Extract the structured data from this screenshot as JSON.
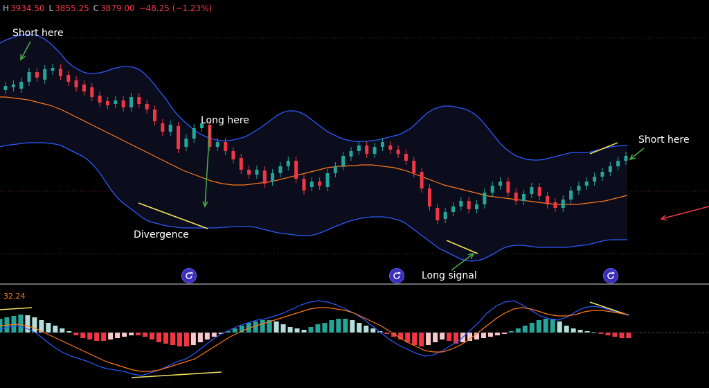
{
  "ohlc": {
    "h_label": "H",
    "h": "3934.50",
    "l_label": "L",
    "l": "3855.25",
    "c_label": "C",
    "c": "3879.00",
    "change": "−48.25 (−1.23%)"
  },
  "oscillator": {
    "value": "32.24"
  },
  "annotations": {
    "short_left": "Short here",
    "long_here": "Long here",
    "divergence": "Divergence",
    "long_signal": "Long signal",
    "short_right": "Short here"
  },
  "colors": {
    "up": "#26a69a",
    "down": "#f23645",
    "band": "#2d5bff",
    "basis": "#ff7a1a",
    "macd": "#2d5bff",
    "signal": "#ff7a1a",
    "divergence": "#f2e35b",
    "arrow_green": "#4caf50",
    "arrow_red": "#f23645",
    "icon_bg": "#3b2fb8"
  },
  "chart_data": {
    "type": "candlestick",
    "upper_band": [
      62,
      58,
      55,
      52,
      50,
      50,
      50,
      52,
      56,
      62,
      70,
      78,
      88,
      95,
      100,
      104,
      106,
      106,
      105,
      103,
      100,
      98,
      96,
      96,
      97,
      100,
      106,
      114,
      124,
      134,
      144,
      156,
      166,
      174,
      181,
      188,
      193,
      197,
      200,
      202,
      203,
      203,
      202,
      200,
      198,
      194,
      189,
      184,
      178,
      172,
      166,
      162,
      160,
      160,
      162,
      166,
      172,
      178,
      184,
      190,
      194,
      198,
      201,
      203,
      204,
      204,
      204,
      203,
      202,
      200,
      198,
      196,
      194,
      190,
      185,
      178,
      170,
      163,
      158,
      155,
      153,
      153,
      154,
      156,
      158,
      162,
      168,
      176,
      186,
      196,
      206,
      214,
      220,
      225,
      228,
      230,
      231,
      231,
      230,
      228,
      226,
      224,
      222,
      220,
      220,
      220,
      220,
      218,
      216,
      214,
      212,
      211,
      210,
      210
    ],
    "lower_band": [
      212,
      210,
      209,
      208,
      207,
      206,
      206,
      206,
      206,
      207,
      208,
      210,
      214,
      218,
      222,
      226,
      232,
      240,
      250,
      262,
      274,
      284,
      292,
      298,
      304,
      310,
      316,
      320,
      322,
      324,
      326,
      327,
      328,
      329,
      329,
      329,
      329,
      329,
      329,
      329,
      328,
      328,
      327,
      327,
      327,
      327,
      328,
      330,
      332,
      334,
      336,
      337,
      338,
      339,
      340,
      340,
      340,
      338,
      335,
      332,
      328,
      325,
      322,
      319,
      317,
      315,
      314,
      313,
      313,
      313,
      314,
      316,
      318,
      322,
      328,
      334,
      340,
      346,
      352,
      358,
      362,
      366,
      370,
      374,
      376,
      377,
      376,
      374,
      370,
      366,
      361,
      357,
      355,
      354,
      354,
      355,
      356,
      357,
      357,
      357,
      357,
      357,
      357,
      356,
      355,
      354,
      353,
      351,
      349,
      347,
      346,
      346,
      346,
      346
    ],
    "basis": [
      140,
      140,
      141,
      142,
      143,
      144,
      146,
      148,
      150,
      152,
      155,
      158,
      162,
      166,
      170,
      174,
      178,
      182,
      186,
      190,
      194,
      198,
      202,
      206,
      210,
      214,
      218,
      222,
      226,
      230,
      234,
      238,
      242,
      246,
      249,
      252,
      255,
      258,
      261,
      263,
      265,
      266,
      267,
      267,
      267,
      266,
      265,
      264,
      263,
      262,
      260,
      258,
      256,
      254,
      252,
      250,
      248,
      246,
      244,
      242,
      241,
      240,
      240,
      239,
      239,
      238,
      238,
      238,
      239,
      240,
      241,
      242,
      244,
      246,
      249,
      252,
      255,
      258,
      261,
      264,
      267,
      269,
      271,
      273,
      275,
      277,
      279,
      281,
      283,
      284,
      285,
      286,
      287,
      288,
      289,
      290,
      291,
      292,
      293,
      294,
      295,
      295,
      295,
      295,
      295,
      294,
      293,
      292,
      291,
      290,
      288,
      286,
      284,
      282
    ],
    "candles": [
      {
        "o": 130,
        "c": 124
      },
      {
        "o": 126,
        "c": 122
      },
      {
        "o": 128,
        "c": 118
      },
      {
        "o": 118,
        "c": 104
      },
      {
        "o": 104,
        "c": 112
      },
      {
        "o": 115,
        "c": 100
      },
      {
        "o": 102,
        "c": 98
      },
      {
        "o": 99,
        "c": 110
      },
      {
        "o": 108,
        "c": 118
      },
      {
        "o": 116,
        "c": 126
      },
      {
        "o": 122,
        "c": 132
      },
      {
        "o": 126,
        "c": 140
      },
      {
        "o": 138,
        "c": 148
      },
      {
        "o": 146,
        "c": 152
      },
      {
        "o": 150,
        "c": 145
      },
      {
        "o": 145,
        "c": 155
      },
      {
        "o": 155,
        "c": 140
      },
      {
        "o": 140,
        "c": 150
      },
      {
        "o": 150,
        "c": 158
      },
      {
        "o": 158,
        "c": 175
      },
      {
        "o": 178,
        "c": 190
      },
      {
        "o": 190,
        "c": 180
      },
      {
        "o": 182,
        "c": 215
      },
      {
        "o": 212,
        "c": 200
      },
      {
        "o": 200,
        "c": 185
      },
      {
        "o": 185,
        "c": 178
      },
      {
        "o": 180,
        "c": 212
      },
      {
        "o": 212,
        "c": 205
      },
      {
        "o": 205,
        "c": 218
      },
      {
        "o": 218,
        "c": 230
      },
      {
        "o": 228,
        "c": 245
      },
      {
        "o": 245,
        "c": 252
      },
      {
        "o": 252,
        "c": 245
      },
      {
        "o": 246,
        "c": 265
      },
      {
        "o": 262,
        "c": 250
      },
      {
        "o": 250,
        "c": 240
      },
      {
        "o": 240,
        "c": 232
      },
      {
        "o": 232,
        "c": 258
      },
      {
        "o": 258,
        "c": 275
      },
      {
        "o": 270,
        "c": 262
      },
      {
        "o": 262,
        "c": 268
      },
      {
        "o": 270,
        "c": 250
      },
      {
        "o": 250,
        "c": 240
      },
      {
        "o": 240,
        "c": 225
      },
      {
        "o": 226,
        "c": 218
      },
      {
        "o": 218,
        "c": 210
      },
      {
        "o": 210,
        "c": 222
      },
      {
        "o": 222,
        "c": 212
      },
      {
        "o": 212,
        "c": 205
      },
      {
        "o": 210,
        "c": 216
      },
      {
        "o": 216,
        "c": 222
      },
      {
        "o": 222,
        "c": 232
      },
      {
        "o": 232,
        "c": 250
      },
      {
        "o": 248,
        "c": 272
      },
      {
        "o": 272,
        "c": 298
      },
      {
        "o": 300,
        "c": 318
      },
      {
        "o": 316,
        "c": 306
      },
      {
        "o": 306,
        "c": 298
      },
      {
        "o": 298,
        "c": 290
      },
      {
        "o": 290,
        "c": 302
      },
      {
        "o": 302,
        "c": 295
      },
      {
        "o": 295,
        "c": 278
      },
      {
        "o": 278,
        "c": 268
      },
      {
        "o": 268,
        "c": 262
      },
      {
        "o": 262,
        "c": 278
      },
      {
        "o": 278,
        "c": 290
      },
      {
        "o": 290,
        "c": 280
      },
      {
        "o": 280,
        "c": 270
      },
      {
        "o": 270,
        "c": 283
      },
      {
        "o": 283,
        "c": 295
      },
      {
        "o": 292,
        "c": 300
      },
      {
        "o": 300,
        "c": 288
      },
      {
        "o": 288,
        "c": 275
      },
      {
        "o": 275,
        "c": 268
      },
      {
        "o": 268,
        "c": 262
      },
      {
        "o": 262,
        "c": 255
      },
      {
        "o": 255,
        "c": 248
      },
      {
        "o": 248,
        "c": 240
      },
      {
        "o": 240,
        "c": 232
      },
      {
        "o": 232,
        "c": 225
      }
    ],
    "macd_hist": [
      20,
      22,
      24,
      26,
      25,
      22,
      18,
      14,
      10,
      6,
      2,
      -4,
      -8,
      -10,
      -12,
      -12,
      -10,
      -8,
      -6,
      -4,
      -4,
      -6,
      -10,
      -14,
      -16,
      -18,
      -20,
      -20,
      -18,
      -14,
      -10,
      -6,
      -2,
      2,
      6,
      10,
      14,
      16,
      18,
      18,
      16,
      12,
      8,
      6,
      4,
      8,
      12,
      14,
      18,
      20,
      20,
      18,
      14,
      10,
      6,
      2,
      -2,
      -6,
      -10,
      -14,
      -18,
      -20,
      -18,
      -14,
      -10,
      -12,
      -16,
      -14,
      -12,
      -10,
      -8,
      -6,
      -4,
      -2,
      2,
      6,
      10,
      14,
      18,
      20,
      20,
      16,
      10,
      6,
      4,
      2,
      0,
      -2,
      -4,
      -6,
      -8,
      -8
    ],
    "macd": [
      475,
      472,
      470,
      474,
      480,
      490,
      500,
      508,
      514,
      518,
      522,
      528,
      532,
      534,
      536,
      540,
      542,
      538,
      534,
      528,
      522,
      518,
      510,
      500,
      490,
      482,
      476,
      470,
      466,
      462,
      460,
      456,
      452,
      446,
      440,
      436,
      434,
      436,
      440,
      446,
      452,
      460,
      470,
      480,
      490,
      498,
      504,
      510,
      514,
      512,
      506,
      498,
      490,
      478,
      466,
      452,
      442,
      436,
      434,
      440,
      448,
      456,
      460,
      462,
      458,
      450,
      444,
      442,
      444,
      448,
      452,
      455
    ],
    "signal": [
      470,
      469,
      468,
      470,
      474,
      480,
      486,
      492,
      498,
      504,
      510,
      516,
      522,
      526,
      530,
      534,
      536,
      536,
      534,
      530,
      526,
      522,
      518,
      510,
      502,
      494,
      486,
      480,
      474,
      470,
      466,
      462,
      458,
      454,
      450,
      446,
      444,
      444,
      446,
      448,
      452,
      458,
      464,
      470,
      478,
      486,
      494,
      500,
      506,
      508,
      508,
      504,
      498,
      490,
      480,
      470,
      460,
      452,
      446,
      444,
      446,
      450,
      454,
      456,
      456,
      454,
      450,
      448,
      448,
      450,
      452,
      454
    ]
  }
}
